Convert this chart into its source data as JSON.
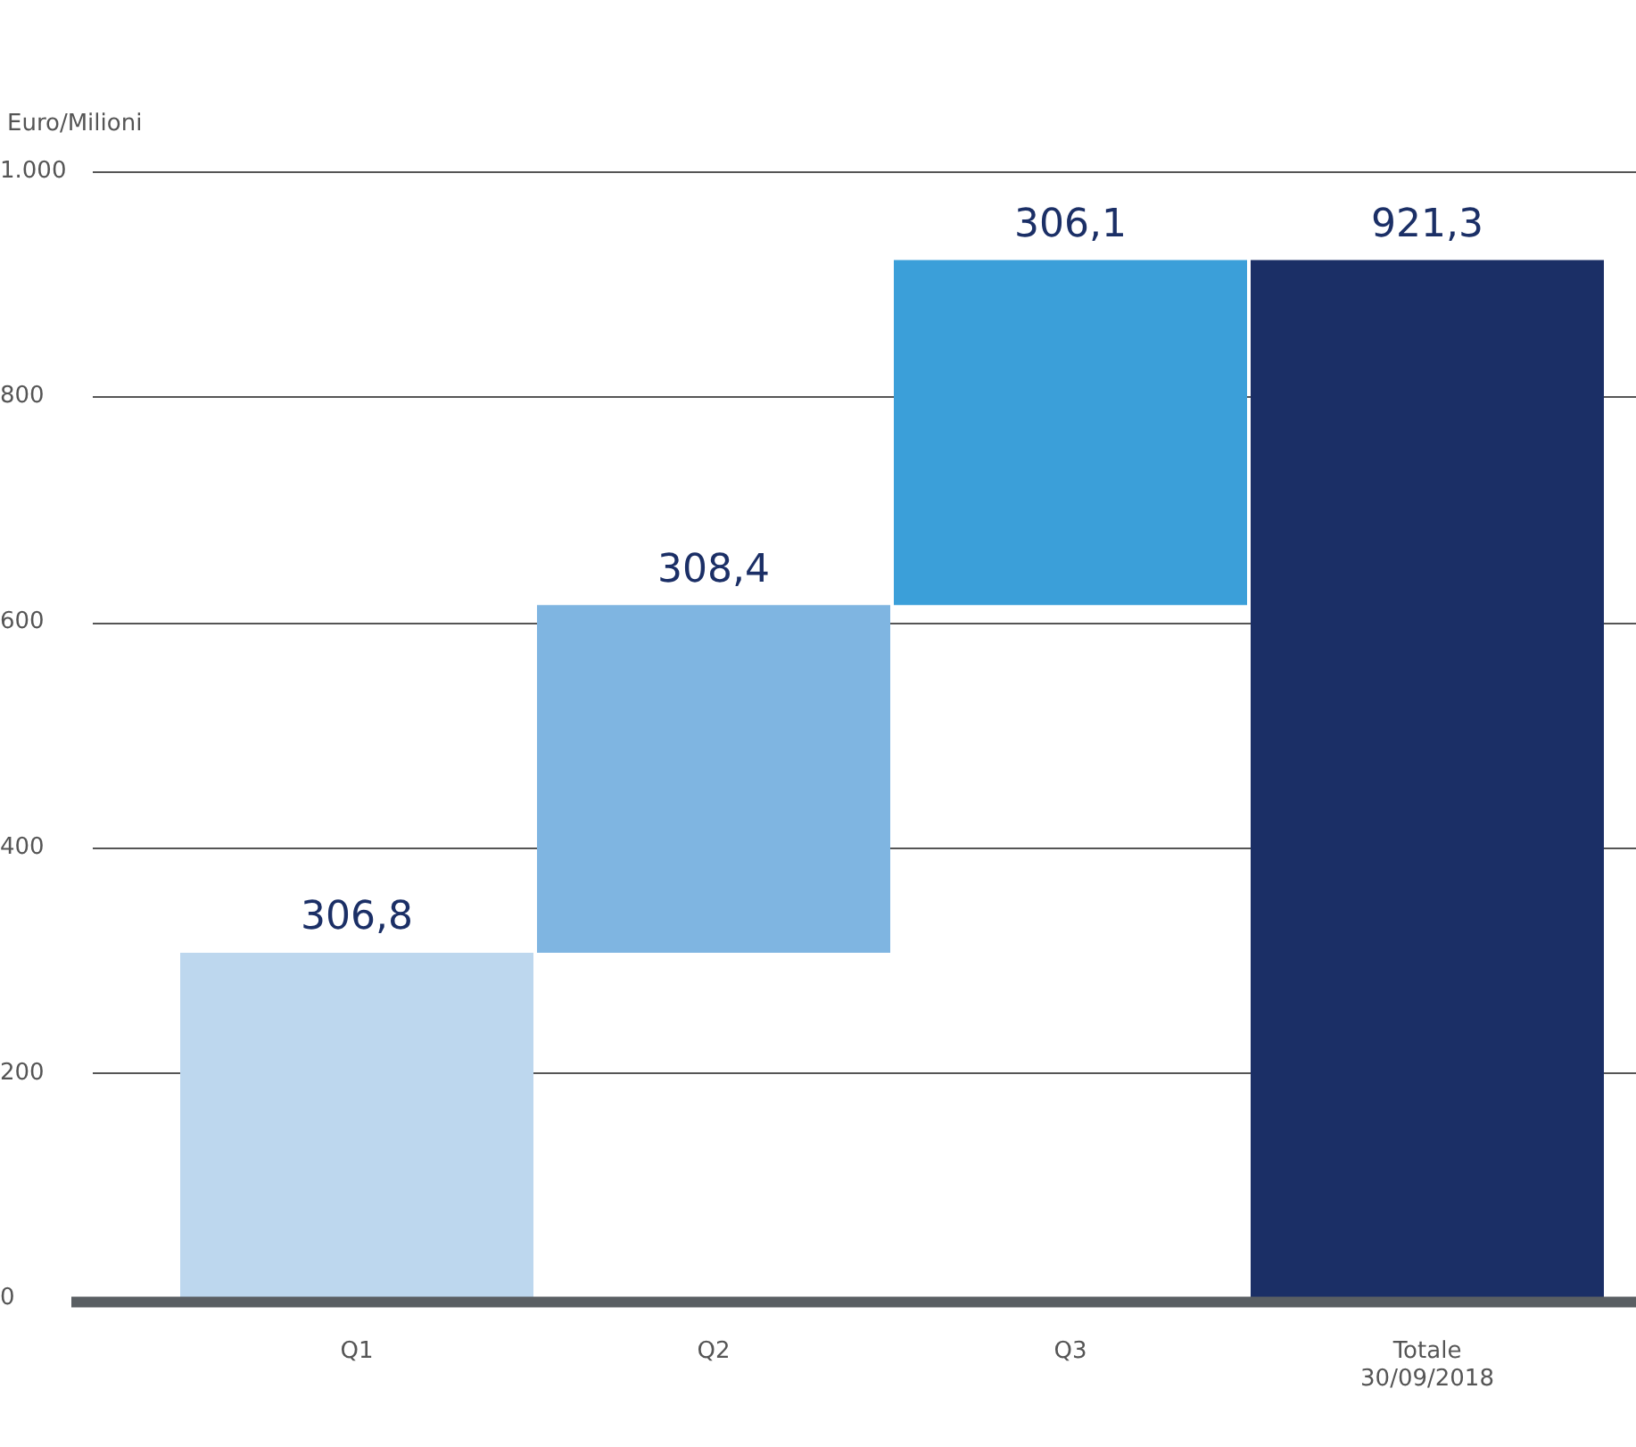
{
  "chart_data": {
    "type": "bar",
    "ylabel": "Euro/Milioni",
    "categories": [
      "Q1",
      "Q2",
      "Q3",
      "Totale 30/09/2018"
    ],
    "values": [
      306.8,
      308.4,
      306.1,
      921.3
    ],
    "base": [
      0,
      306.8,
      615.2,
      0
    ],
    "colors": [
      "#bdd7ee",
      "#7fb5e1",
      "#3b9fd9",
      "#1b2f66"
    ],
    "value_labels": [
      "306,8",
      "308,4",
      "306,1",
      "921,3"
    ],
    "ylim": [
      0,
      1000
    ],
    "yticks": [
      0,
      200,
      400,
      600,
      800,
      {
        "value": 1000,
        "label": "1.000"
      }
    ],
    "grid": "y",
    "legend": false
  }
}
